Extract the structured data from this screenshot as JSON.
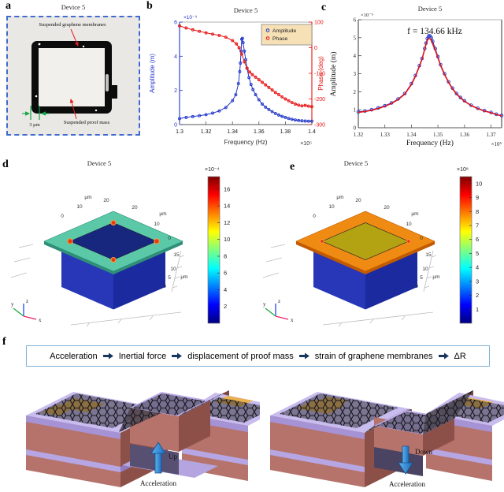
{
  "panel_a": {
    "label": "a",
    "title": "Device 5",
    "membrane_annotation": "Suspended graphene membranes",
    "mass_annotation": "Suspended proof mass",
    "scale_label": "3 μm"
  },
  "panel_b": {
    "label": "b"
  },
  "panel_c": {
    "label": "c"
  },
  "panel_d": {
    "label": "d",
    "title": "Device 5",
    "colorbar": {
      "exponent": "×10⁻⁴",
      "vmax": 17.5,
      "ticks": [
        2,
        4,
        6,
        8,
        10,
        12,
        14,
        16
      ]
    }
  },
  "panel_e": {
    "label": "e",
    "title": "Device 5",
    "colorbar": {
      "exponent": "×10⁸",
      "vmax": 10.5,
      "ticks": [
        1,
        2,
        3,
        4,
        5,
        6,
        7,
        8,
        9,
        10
      ]
    }
  },
  "comsol_axes": {
    "unit": "μm",
    "x_ticks": [
      "0",
      "10",
      "20"
    ],
    "y_ticks": [
      "20",
      "10",
      "0"
    ],
    "z_ticks": [
      "15",
      "10",
      "5",
      "0"
    ]
  },
  "triad": {
    "x": "x",
    "y": "y",
    "z": "z"
  },
  "panel_f": {
    "label": "f",
    "flow_items": [
      "Acceleration",
      "Inertial force",
      "displacement of proof mass",
      "strain of graphene membranes",
      "ΔR"
    ],
    "left_direction": "Up",
    "left_caption": "Acceleration",
    "right_direction": "Down",
    "right_caption": "Acceleration"
  },
  "chart_data": [
    {
      "id": "b",
      "type": "scatter",
      "title": "Device 5",
      "xlabel": "Frequency (Hz)",
      "x_exponent": "×10⁵",
      "xlim": [
        1.3,
        1.4
      ],
      "ylabel_left": "Amplitude (m)",
      "y_left_exponent": "×10⁻⁹",
      "ylim_left": [
        0,
        6
      ],
      "ylabel_right": "Phase (deg)",
      "ylim_right": [
        -300,
        100
      ],
      "x_ticks": [
        1.3,
        1.32,
        1.34,
        1.36,
        1.38,
        1.4
      ],
      "x_tick_labels": [
        "1.3",
        "1.32",
        "1.34",
        "1.36",
        "1.38",
        "1.4"
      ],
      "y_left_ticks": [
        0,
        2,
        4,
        6
      ],
      "y_right_ticks": [
        -300,
        -200,
        -100,
        0,
        100
      ],
      "legend": [
        "Amplitude",
        "Phase"
      ],
      "legend_bg": "#f6e0b5",
      "series": [
        {
          "name": "Amplitude",
          "axis": "left",
          "color": "#2035c8",
          "x": [
            1.3,
            1.305,
            1.31,
            1.315,
            1.32,
            1.325,
            1.33,
            1.335,
            1.34,
            1.3425,
            1.3445,
            1.3455,
            1.346,
            1.3465,
            1.347,
            1.3475,
            1.348,
            1.349,
            1.35,
            1.351,
            1.3525,
            1.354,
            1.3555,
            1.3575,
            1.36,
            1.3625,
            1.365,
            1.3675,
            1.37,
            1.3725,
            1.375,
            1.3775,
            1.38,
            1.3825,
            1.385,
            1.3875,
            1.39,
            1.3925,
            1.395,
            1.3975,
            1.4
          ],
          "y": [
            0.35,
            0.42,
            0.47,
            0.52,
            0.58,
            0.67,
            0.8,
            1.0,
            1.4,
            1.75,
            2.4,
            3.1,
            3.6,
            4.3,
            5.0,
            5.05,
            4.8,
            4.3,
            3.8,
            3.3,
            2.75,
            2.35,
            2.05,
            1.75,
            1.45,
            1.2,
            1.02,
            0.88,
            0.76,
            0.65,
            0.56,
            0.48,
            0.42,
            0.36,
            0.31,
            0.27,
            0.24,
            0.22,
            0.21,
            0.2,
            0.2
          ]
        },
        {
          "name": "Phase",
          "axis": "right",
          "color": "#e81212",
          "x": [
            1.3,
            1.305,
            1.31,
            1.315,
            1.32,
            1.325,
            1.33,
            1.335,
            1.34,
            1.343,
            1.345,
            1.347,
            1.349,
            1.351,
            1.353,
            1.355,
            1.3575,
            1.36,
            1.3625,
            1.365,
            1.3675,
            1.37,
            1.3725,
            1.375,
            1.3775,
            1.38,
            1.3825,
            1.385,
            1.3875,
            1.39,
            1.3925,
            1.395,
            1.3975,
            1.4
          ],
          "y": [
            85,
            77,
            70,
            64,
            58,
            53,
            48,
            41,
            28,
            15,
            0,
            -25,
            -55,
            -80,
            -95,
            -105,
            -115,
            -125,
            -135,
            -145,
            -155,
            -165,
            -175,
            -183,
            -192,
            -200,
            -207,
            -214,
            -220,
            -224,
            -227,
            -225,
            -228,
            -230
          ]
        }
      ]
    },
    {
      "id": "c",
      "type": "scatter+fit",
      "title": "Device 5",
      "annotation": "f = 134.66 kHz",
      "xlabel": "Frequency (Hz)",
      "x_exponent": "×10⁵",
      "xlim": [
        1.32,
        1.374
      ],
      "ylabel": "Amplitude (m)",
      "y_exponent": "×10⁻⁹",
      "ylim": [
        0,
        6
      ],
      "x_ticks": [
        1.32,
        1.33,
        1.34,
        1.35,
        1.36,
        1.37
      ],
      "x_tick_labels": [
        "1.32",
        "1.33",
        "1.34",
        "1.35",
        "1.36",
        "1.37"
      ],
      "y_ticks": [
        0,
        1,
        2,
        3,
        4,
        5,
        6
      ],
      "series": [
        {
          "name": "Amplitude data",
          "style": "scatter",
          "color": "#1f35c8",
          "x": [
            1.32,
            1.3225,
            1.325,
            1.3275,
            1.33,
            1.3325,
            1.335,
            1.3375,
            1.34,
            1.3415,
            1.343,
            1.344,
            1.345,
            1.3455,
            1.346,
            1.3465,
            1.347,
            1.3475,
            1.348,
            1.349,
            1.35,
            1.351,
            1.3525,
            1.354,
            1.3555,
            1.357,
            1.3585,
            1.36,
            1.3625,
            1.365,
            1.3675,
            1.37,
            1.372,
            1.374
          ],
          "y": [
            0.88,
            0.93,
            1.0,
            1.1,
            1.22,
            1.38,
            1.6,
            1.9,
            2.45,
            2.9,
            3.45,
            3.85,
            4.4,
            4.7,
            4.95,
            5.1,
            5.1,
            5.0,
            4.8,
            4.4,
            3.95,
            3.5,
            3.0,
            2.55,
            2.2,
            1.9,
            1.68,
            1.5,
            1.25,
            1.08,
            0.95,
            0.85,
            0.75,
            0.68
          ]
        },
        {
          "name": "Lorentzian fit",
          "style": "line",
          "color": "#e81212",
          "x": [
            1.32,
            1.3225,
            1.325,
            1.3275,
            1.33,
            1.3325,
            1.335,
            1.3375,
            1.34,
            1.3415,
            1.343,
            1.344,
            1.345,
            1.3455,
            1.346,
            1.3465,
            1.347,
            1.3475,
            1.348,
            1.349,
            1.35,
            1.351,
            1.3525,
            1.354,
            1.3555,
            1.357,
            1.3585,
            1.36,
            1.3625,
            1.365,
            1.3675,
            1.37,
            1.372,
            1.374
          ],
          "y": [
            0.85,
            0.9,
            0.97,
            1.07,
            1.19,
            1.35,
            1.57,
            1.87,
            2.4,
            2.85,
            3.4,
            3.8,
            4.35,
            4.62,
            4.85,
            4.95,
            4.95,
            4.85,
            4.65,
            4.3,
            3.88,
            3.45,
            2.95,
            2.52,
            2.16,
            1.87,
            1.65,
            1.47,
            1.23,
            1.06,
            0.93,
            0.83,
            0.73,
            0.66
          ]
        }
      ]
    }
  ]
}
